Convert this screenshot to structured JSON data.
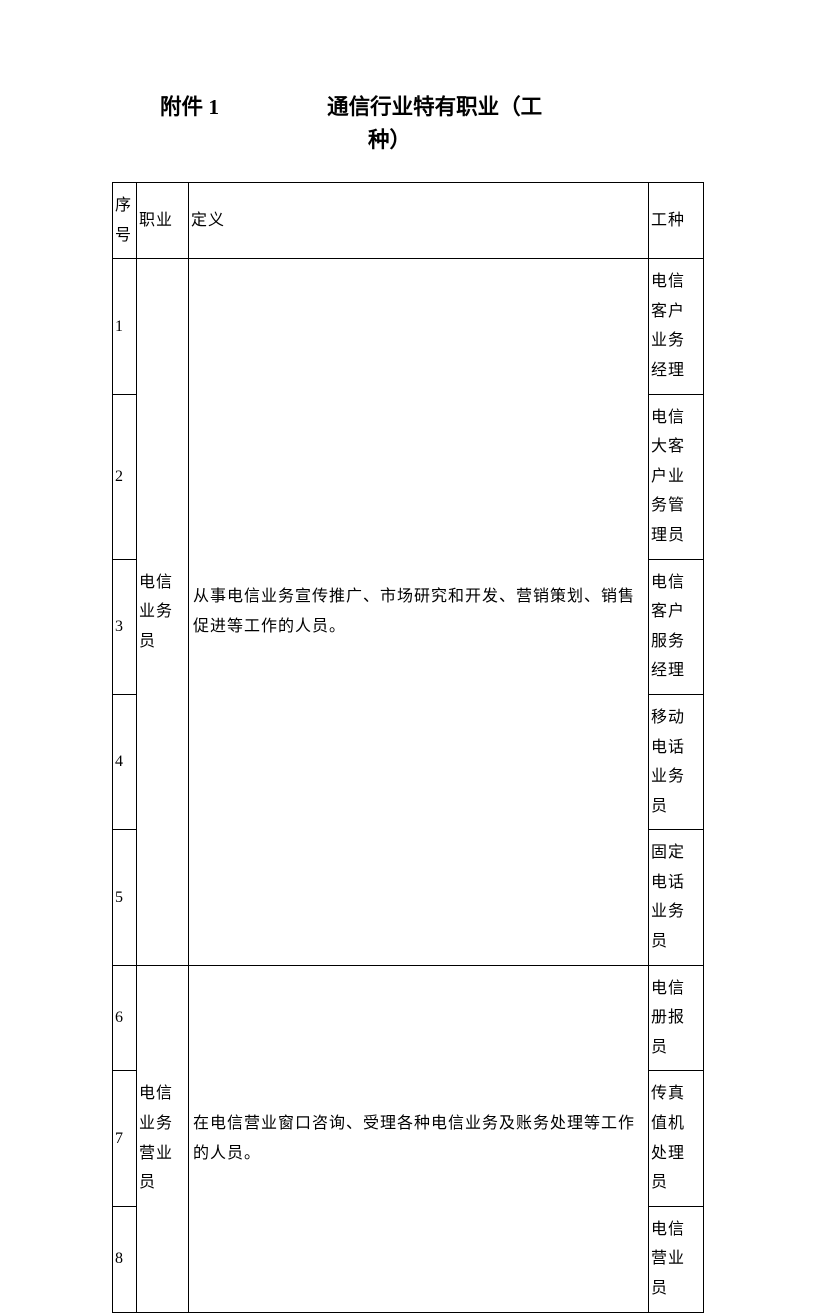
{
  "header": {
    "appendix": "附件 1",
    "title_main": "通信行业特有职业（工",
    "title_sub": "种）"
  },
  "table": {
    "headers": {
      "seq": "序号",
      "job": "职业",
      "def": "定义",
      "type": "工种"
    },
    "group1": {
      "job": "电信业务员",
      "def": "从事电信业务宣传推广、市场研究和开发、营销策划、销售促进等工作的人员。",
      "rows": [
        {
          "seq": "1",
          "type": "电信客户业务经理"
        },
        {
          "seq": "2",
          "type": "电信大客户业务管理员"
        },
        {
          "seq": "3",
          "type": "电信客户服务经理"
        },
        {
          "seq": "4",
          "type": "移动电话业务员"
        },
        {
          "seq": "5",
          "type": "固定电话业务员"
        }
      ]
    },
    "group2": {
      "job": "电信业务营业员",
      "def": "在电信营业窗口咨询、受理各种电信业务及账务处理等工作的人员。",
      "rows": [
        {
          "seq": "6",
          "type": "电信册报员"
        },
        {
          "seq": "7",
          "type": "传真值机处理员"
        },
        {
          "seq": "8",
          "type": "电信营业员"
        }
      ]
    }
  }
}
